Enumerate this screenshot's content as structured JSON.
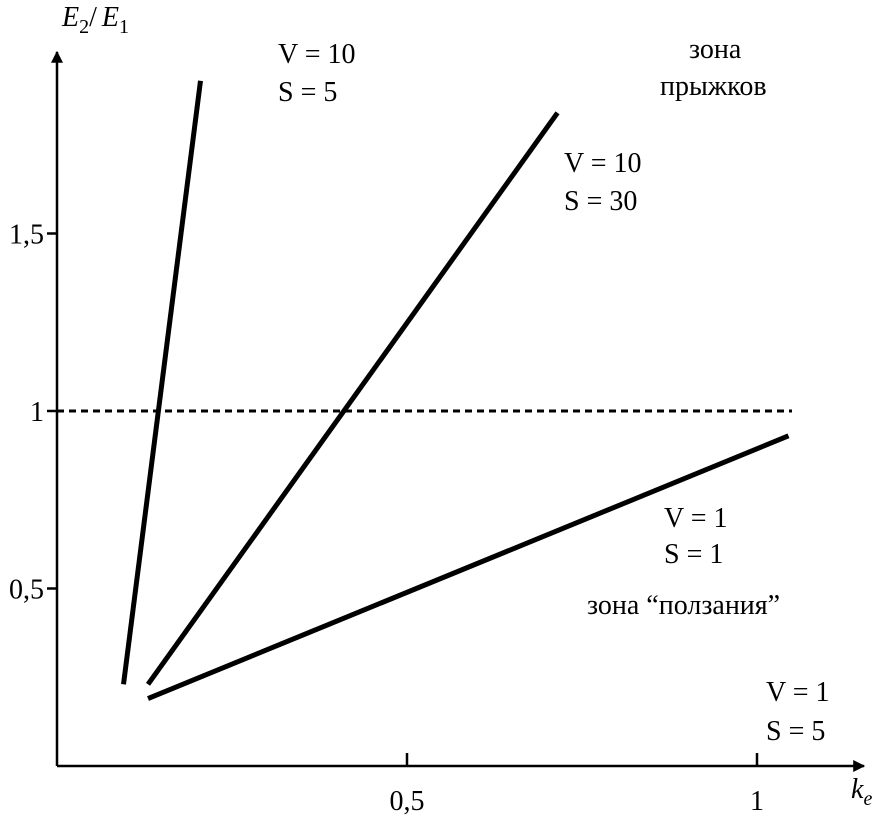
{
  "chart_data": {
    "type": "line",
    "title": "",
    "xlabel_main": "k",
    "xlabel_sub": "e",
    "ylabel_e1": "E",
    "ylabel_sub1": "2",
    "ylabel_slash": "/",
    "ylabel_e2": "E",
    "ylabel_sub2": "1",
    "xlim": [
      0,
      1.12
    ],
    "ylim": [
      0,
      1.95
    ],
    "x_ticks": [
      {
        "value": 0.5,
        "label": "0,5"
      },
      {
        "value": 1,
        "label": "1"
      }
    ],
    "y_ticks": [
      {
        "value": 0.5,
        "label": "0,5"
      },
      {
        "value": 1,
        "label": "1"
      },
      {
        "value": 1.5,
        "label": "1,5"
      }
    ],
    "reference_line": {
      "y": 1,
      "x": [
        0,
        1.05
      ],
      "style": "dashed"
    },
    "series": [
      {
        "points": [
          [
            0.095,
            0.23
          ],
          [
            0.205,
            1.93
          ]
        ]
      },
      {
        "points": [
          [
            0.13,
            0.23
          ],
          [
            0.715,
            1.84
          ]
        ]
      },
      {
        "points": [
          [
            0.13,
            0.19
          ],
          [
            1.045,
            0.93
          ]
        ]
      }
    ],
    "annotations": [
      {
        "lines": [
          "V = 10",
          "S = 5"
        ]
      },
      {
        "lines": [
          "V = 10",
          "S = 30"
        ]
      },
      {
        "lines": [
          "V = 1",
          "S = 1"
        ]
      },
      {
        "lines": [
          "V = 1",
          "S = 5"
        ]
      }
    ],
    "zones": {
      "jump_line1": "зона",
      "jump_line2": "прыжков",
      "crawl": "зона “ползания”"
    }
  }
}
